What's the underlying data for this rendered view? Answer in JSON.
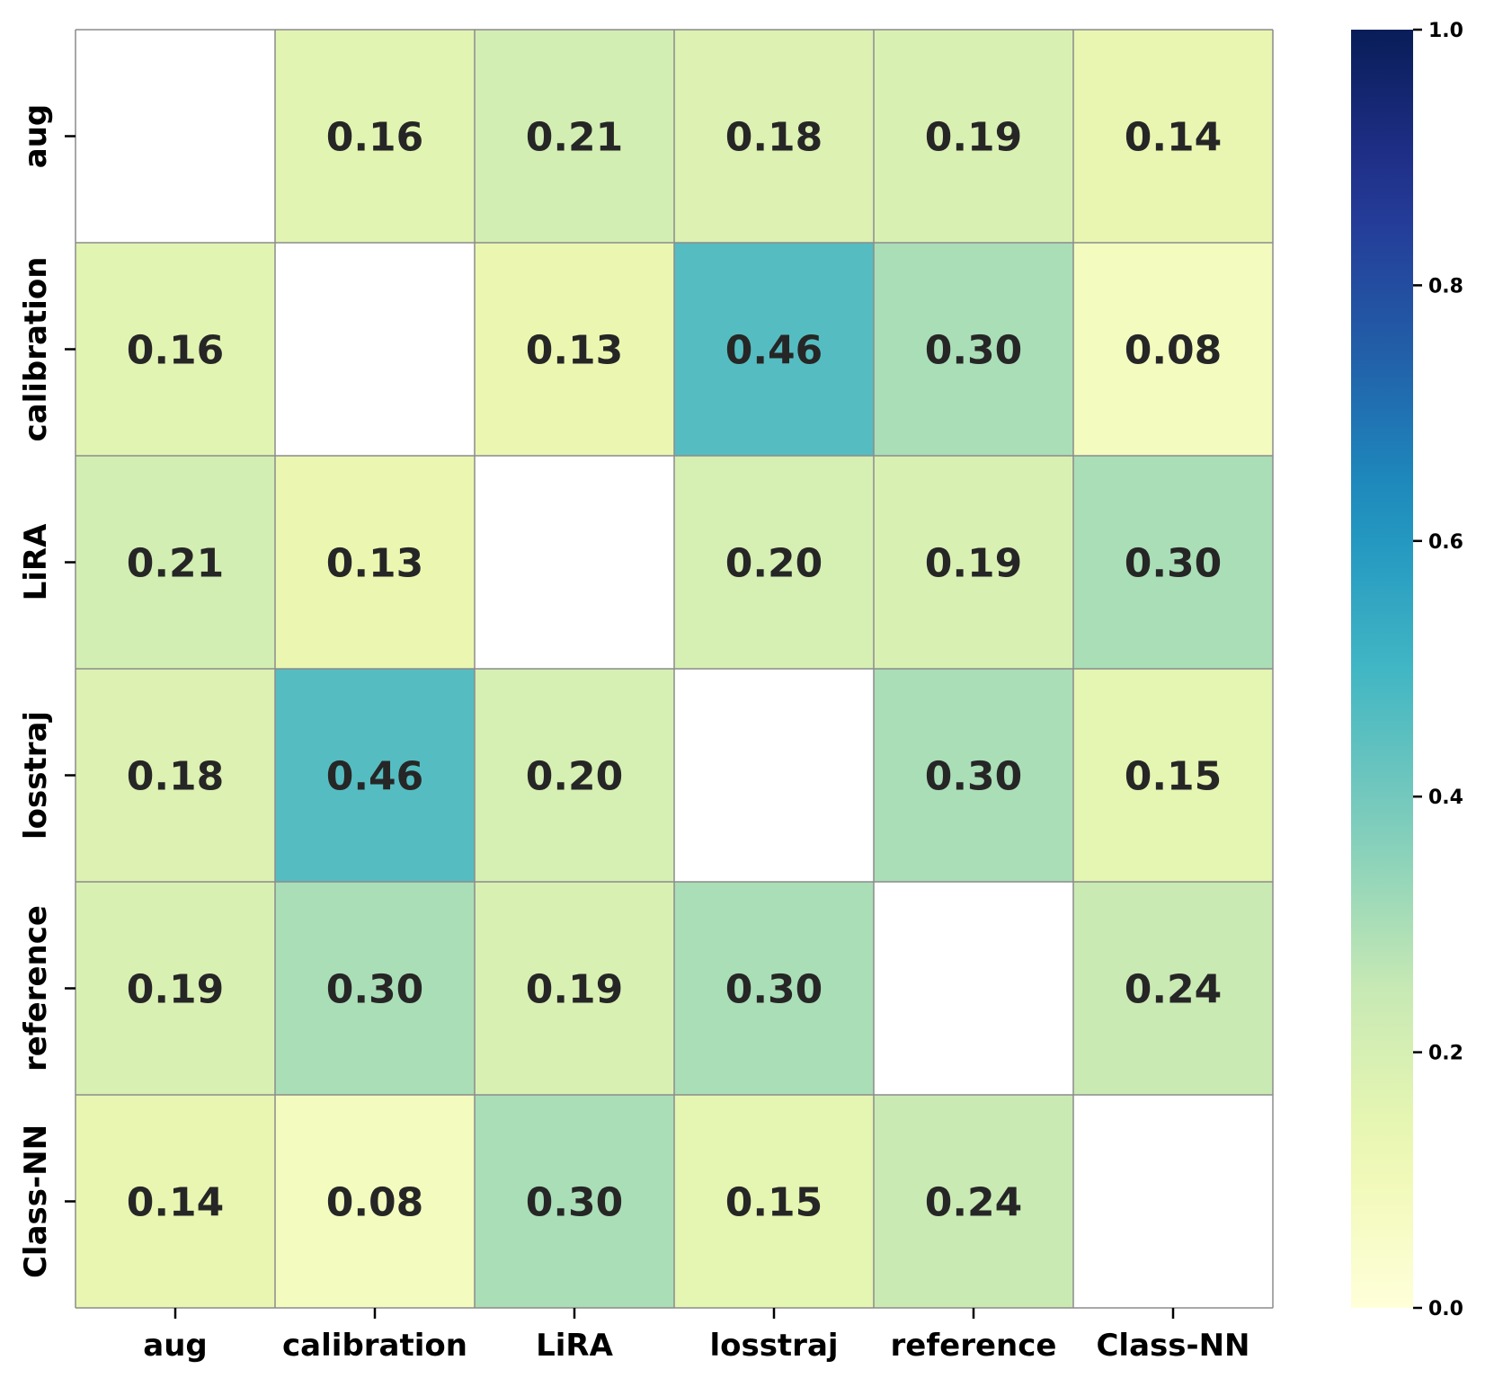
{
  "chart_data": {
    "type": "heatmap",
    "title": "",
    "xlabel": "",
    "ylabel": "",
    "x_categories": [
      "aug",
      "calibration",
      "LiRA",
      "losstraj",
      "reference",
      "Class-NN"
    ],
    "y_categories": [
      "aug",
      "calibration",
      "LiRA",
      "losstraj",
      "reference",
      "Class-NN"
    ],
    "values": [
      [
        null,
        0.16,
        0.21,
        0.18,
        0.19,
        0.14
      ],
      [
        0.16,
        null,
        0.13,
        0.46,
        0.3,
        0.08
      ],
      [
        0.21,
        0.13,
        null,
        0.2,
        0.19,
        0.3
      ],
      [
        0.18,
        0.46,
        0.2,
        null,
        0.3,
        0.15
      ],
      [
        0.19,
        0.3,
        0.19,
        0.3,
        null,
        0.24
      ],
      [
        0.14,
        0.08,
        0.3,
        0.15,
        0.24,
        null
      ]
    ],
    "value_format": "0.00",
    "colormap": "YlGnBu",
    "colorbar": {
      "vmin": 0.0,
      "vmax": 1.0,
      "ticks": [
        0.0,
        0.2,
        0.4,
        0.6,
        0.8,
        1.0
      ],
      "tick_labels": [
        "0.0",
        "0.2",
        "0.4",
        "0.6",
        "0.8",
        "1.0"
      ]
    },
    "colors": {
      "grid_line": "#8c8c8c",
      "text": "#262626",
      "axis": "#000000"
    }
  }
}
